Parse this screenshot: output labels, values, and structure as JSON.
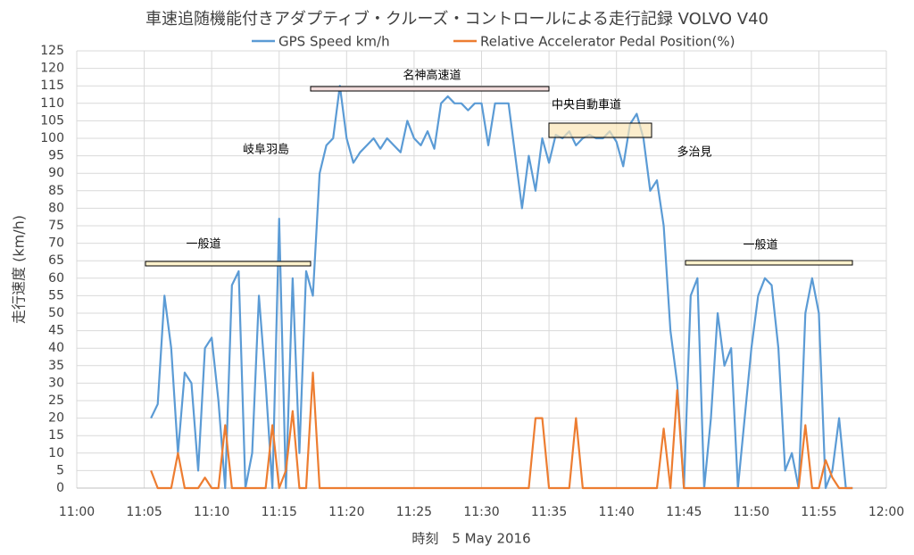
{
  "chart_data": {
    "type": "line",
    "title": "車速追随機能付きアダプティブ・クルーズ・コントロールによる走行記録  VOLVO V40",
    "x_label": "時刻　5 May 2016",
    "y_label": "走行速度 (km/h)",
    "x": [
      665.5,
      666,
      666.5,
      667,
      667.5,
      668,
      668.5,
      669,
      669.5,
      670,
      670.5,
      671,
      671.5,
      672,
      672.5,
      673,
      673.5,
      674,
      674.5,
      675,
      675.5,
      676,
      676.5,
      677,
      677.5,
      678,
      678.5,
      679,
      679.5,
      680,
      680.5,
      681,
      681.5,
      682,
      682.5,
      683,
      683.5,
      684,
      684.5,
      685,
      685.5,
      686,
      686.5,
      687,
      687.5,
      688,
      688.5,
      689,
      689.5,
      690,
      690.5,
      691,
      691.5,
      692,
      692.5,
      693,
      693.5,
      694,
      694.5,
      695,
      695.5,
      696,
      696.5,
      697,
      697.5,
      698,
      698.5,
      699,
      699.5,
      700,
      700.5,
      701,
      701.5,
      702,
      702.5,
      703,
      703.5,
      704,
      704.5,
      705,
      705.5,
      706,
      706.5,
      707,
      707.5,
      708,
      708.5,
      709,
      709.5,
      710,
      710.5,
      711,
      711.5,
      712,
      712.5,
      713,
      713.5,
      714,
      714.5,
      715,
      715.5,
      716,
      716.5,
      717,
      717.5
    ],
    "series": [
      {
        "name": "GPS Speed km/h",
        "color": "#5b9bd5",
        "values": [
          20,
          24,
          55,
          40,
          10,
          33,
          30,
          5,
          40,
          43,
          25,
          0,
          58,
          62,
          0,
          10,
          55,
          30,
          0,
          77,
          0,
          60,
          10,
          62,
          55,
          90,
          98,
          100,
          115,
          100,
          93,
          96,
          98,
          100,
          97,
          100,
          98,
          96,
          105,
          100,
          98,
          102,
          97,
          110,
          112,
          110,
          110,
          108,
          110,
          110,
          98,
          110,
          110,
          110,
          95,
          80,
          95,
          85,
          100,
          93,
          101,
          100,
          102,
          98,
          100,
          101,
          100,
          100,
          102,
          99,
          92,
          104,
          107,
          100,
          85,
          88,
          75,
          45,
          30,
          0,
          55,
          60,
          0,
          20,
          50,
          35,
          40,
          0,
          20,
          40,
          55,
          60,
          58,
          40,
          5,
          10,
          0,
          50,
          60,
          50,
          0,
          5,
          20,
          0,
          0
        ]
      },
      {
        "name": "Relative Accelerator Pedal Position(%)",
        "color": "#ed7d31",
        "values": [
          5,
          0,
          0,
          0,
          10,
          0,
          0,
          0,
          3,
          0,
          0,
          18,
          0,
          0,
          0,
          0,
          0,
          0,
          18,
          0,
          5,
          22,
          0,
          0,
          33,
          0,
          0,
          0,
          0,
          0,
          0,
          0,
          0,
          0,
          0,
          0,
          0,
          0,
          0,
          0,
          0,
          0,
          0,
          0,
          0,
          0,
          0,
          0,
          0,
          0,
          0,
          0,
          0,
          0,
          0,
          0,
          0,
          20,
          20,
          0,
          0,
          0,
          0,
          20,
          0,
          0,
          0,
          0,
          0,
          0,
          0,
          0,
          0,
          0,
          0,
          0,
          17,
          0,
          28,
          0,
          0,
          0,
          0,
          0,
          0,
          0,
          0,
          0,
          0,
          0,
          0,
          0,
          0,
          0,
          0,
          0,
          0,
          18,
          0,
          0,
          8,
          3,
          0,
          0,
          0
        ]
      }
    ],
    "xlim": [
      660,
      720
    ],
    "xticks": [
      {
        "value": 660,
        "label": "11:00"
      },
      {
        "value": 665,
        "label": "11:05"
      },
      {
        "value": 670,
        "label": "11:10"
      },
      {
        "value": 675,
        "label": "11:15"
      },
      {
        "value": 680,
        "label": "11:20"
      },
      {
        "value": 685,
        "label": "11:25"
      },
      {
        "value": 690,
        "label": "11:30"
      },
      {
        "value": 695,
        "label": "11:35"
      },
      {
        "value": 700,
        "label": "11:40"
      },
      {
        "value": 705,
        "label": "11:45"
      },
      {
        "value": 710,
        "label": "11:50"
      },
      {
        "value": 715,
        "label": "11:55"
      },
      {
        "value": 720,
        "label": "12:00"
      }
    ],
    "ylim": [
      0,
      125
    ],
    "yticks": [
      0,
      5,
      10,
      15,
      20,
      25,
      30,
      35,
      40,
      45,
      50,
      55,
      60,
      65,
      70,
      75,
      80,
      85,
      90,
      95,
      100,
      105,
      110,
      115,
      120,
      125
    ],
    "grid": true,
    "annotations": [
      "一般道",
      "名神高速道",
      "中央自動車道",
      "一般道",
      "岐阜羽島",
      "多治見"
    ]
  }
}
